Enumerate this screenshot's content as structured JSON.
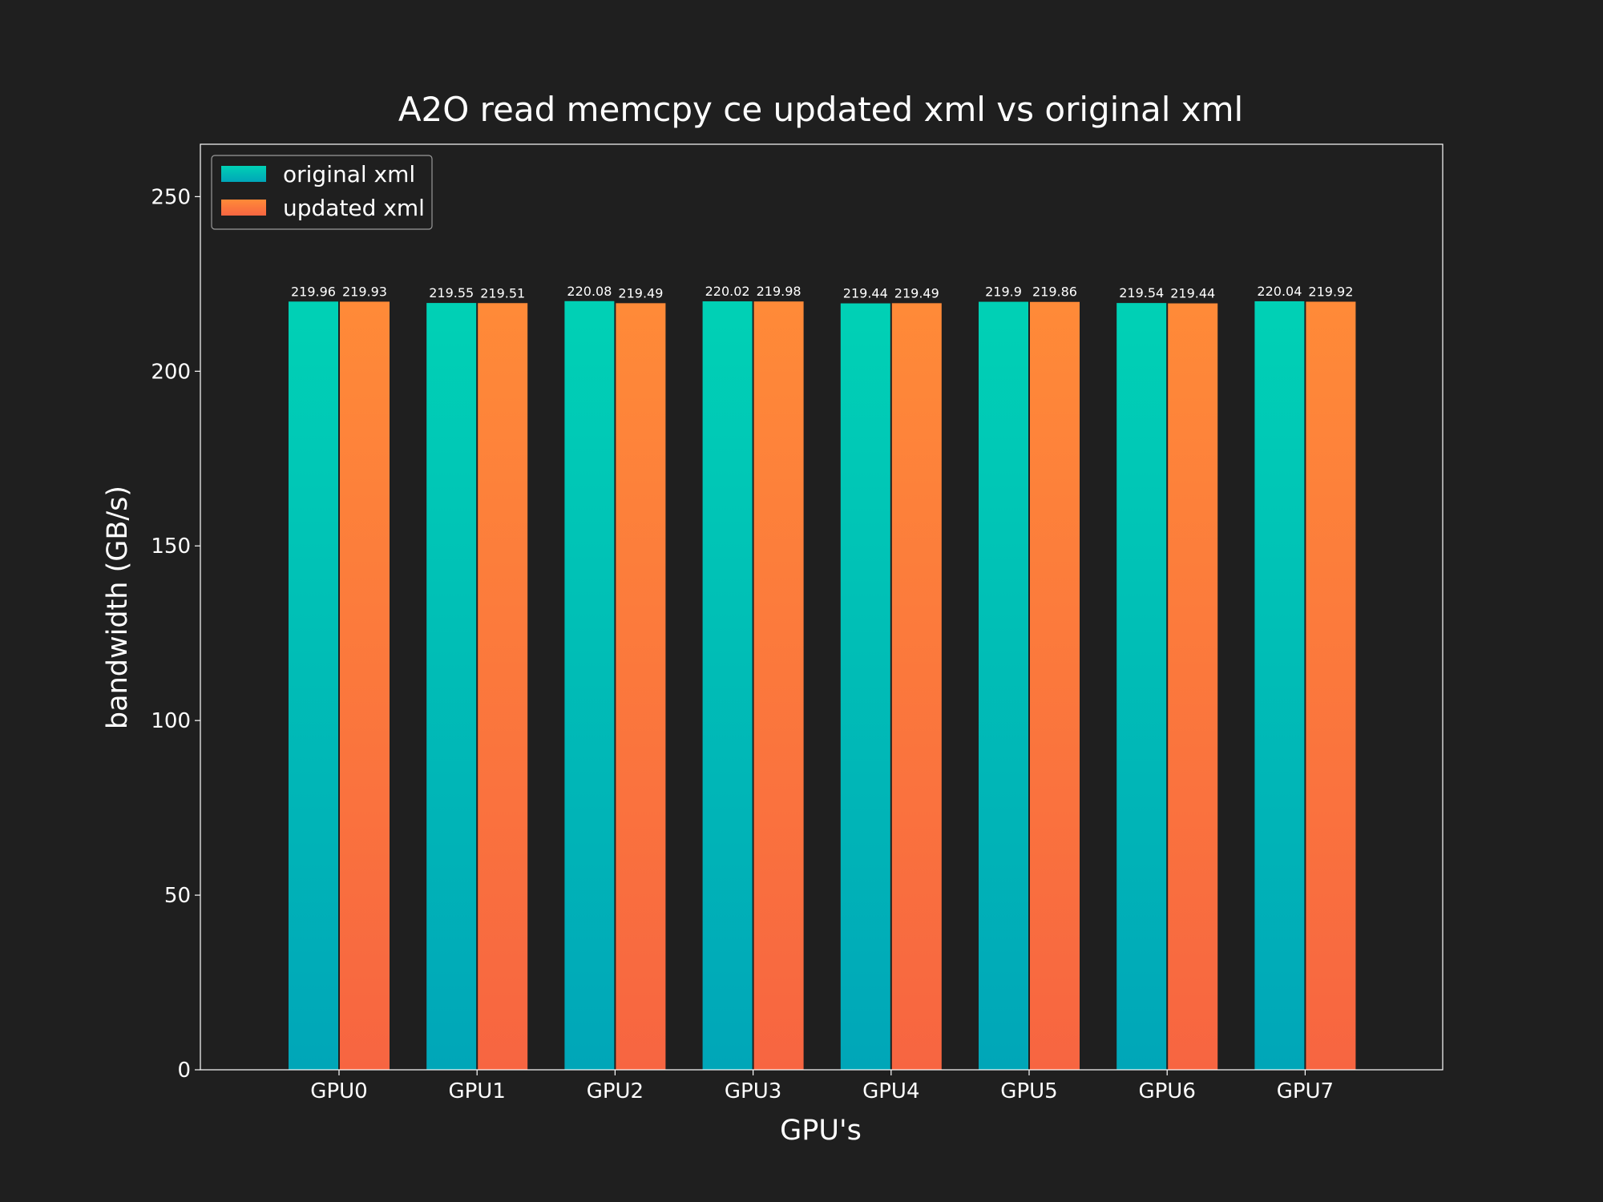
{
  "colors": {
    "background": "#1f1f1f",
    "series_original_top": "#00d1b5",
    "series_original_bottom": "#00a6b8",
    "series_updated_top": "#ff8a38",
    "series_updated_bottom": "#f76541",
    "axes": "#ffffff"
  },
  "chart_data": {
    "type": "bar",
    "title": "A2O read memcpy ce updated xml vs original xml",
    "xlabel": "GPU's",
    "ylabel": "bandwidth (GB/s)",
    "ylim": [
      0,
      265
    ],
    "yticks": [
      0,
      50,
      100,
      150,
      200,
      250
    ],
    "categories": [
      "GPU0",
      "GPU1",
      "GPU2",
      "GPU3",
      "GPU4",
      "GPU5",
      "GPU6",
      "GPU7"
    ],
    "series": [
      {
        "name": "original xml",
        "values": [
          219.96,
          219.55,
          220.08,
          220.02,
          219.44,
          219.9,
          219.54,
          220.04
        ],
        "labels": [
          "219.96",
          "219.55",
          "220.08",
          "220.02",
          "219.44",
          "219.9",
          "219.54",
          "220.04"
        ]
      },
      {
        "name": "updated xml",
        "values": [
          219.93,
          219.51,
          219.49,
          219.98,
          219.49,
          219.86,
          219.44,
          219.92
        ],
        "labels": [
          "219.93",
          "219.51",
          "219.49",
          "219.98",
          "219.49",
          "219.86",
          "219.44",
          "219.92"
        ]
      }
    ],
    "legend_position": "top-left",
    "grid": false
  }
}
